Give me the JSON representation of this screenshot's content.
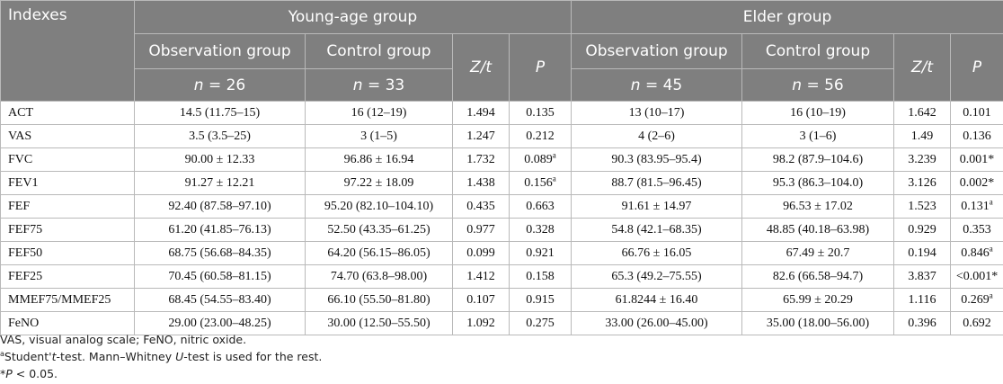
{
  "headers": {
    "indexes": "Indexes",
    "young_group": "Young-age group",
    "elder_group": "Elder group",
    "observation": "Observation group",
    "control": "Control group",
    "zt": "Z/t",
    "p": "P",
    "n_prefix": "n",
    "young_obs_n": " = 26",
    "young_ctrl_n": " = 33",
    "elder_obs_n": " = 45",
    "elder_ctrl_n": " = 56"
  },
  "rows": [
    {
      "label": "ACT",
      "y_obs": "14.5 (11.75–15)",
      "y_ctrl": "16 (12–19)",
      "y_zt": "1.494",
      "y_p": "0.135",
      "y_p_sup": "",
      "e_obs": "13 (10–17)",
      "e_ctrl": "16 (10–19)",
      "e_zt": "1.642",
      "e_p": "0.101",
      "e_p_sup": ""
    },
    {
      "label": "VAS",
      "y_obs": "3.5 (3.5–25)",
      "y_ctrl": "3 (1–5)",
      "y_zt": "1.247",
      "y_p": "0.212",
      "y_p_sup": "",
      "e_obs": "4 (2–6)",
      "e_ctrl": "3 (1–6)",
      "e_zt": "1.49",
      "e_p": "0.136",
      "e_p_sup": ""
    },
    {
      "label": "FVC",
      "y_obs": "90.00 ± 12.33",
      "y_ctrl": "96.86 ± 16.94",
      "y_zt": "1.732",
      "y_p": "0.089",
      "y_p_sup": "a",
      "e_obs": "90.3 (83.95–95.4)",
      "e_ctrl": "98.2 (87.9–104.6)",
      "e_zt": "3.239",
      "e_p": "0.001*",
      "e_p_sup": ""
    },
    {
      "label": "FEV1",
      "y_obs": "91.27 ± 12.21",
      "y_ctrl": "97.22 ± 18.09",
      "y_zt": "1.438",
      "y_p": "0.156",
      "y_p_sup": "a",
      "e_obs": "88.7 (81.5–96.45)",
      "e_ctrl": "95.3 (86.3–104.0)",
      "e_zt": "3.126",
      "e_p": "0.002*",
      "e_p_sup": ""
    },
    {
      "label": "FEF",
      "y_obs": "92.40 (87.58–97.10)",
      "y_ctrl": "95.20 (82.10–104.10)",
      "y_zt": "0.435",
      "y_p": "0.663",
      "y_p_sup": "",
      "e_obs": "91.61 ± 14.97",
      "e_ctrl": "96.53 ± 17.02",
      "e_zt": "1.523",
      "e_p": "0.131",
      "e_p_sup": "a"
    },
    {
      "label": "FEF75",
      "y_obs": "61.20 (41.85–76.13)",
      "y_ctrl": "52.50 (43.35–61.25)",
      "y_zt": "0.977",
      "y_p": "0.328",
      "y_p_sup": "",
      "e_obs": "54.8 (42.1–68.35)",
      "e_ctrl": "48.85 (40.18–63.98)",
      "e_zt": "0.929",
      "e_p": "0.353",
      "e_p_sup": ""
    },
    {
      "label": "FEF50",
      "y_obs": "68.75 (56.68–84.35)",
      "y_ctrl": "64.20 (56.15–86.05)",
      "y_zt": "0.099",
      "y_p": "0.921",
      "y_p_sup": "",
      "e_obs": "66.76 ± 16.05",
      "e_ctrl": "67.49 ± 20.7",
      "e_zt": "0.194",
      "e_p": "0.846",
      "e_p_sup": "a"
    },
    {
      "label": "FEF25",
      "y_obs": "70.45 (60.58–81.15)",
      "y_ctrl": "74.70 (63.8–98.00)",
      "y_zt": "1.412",
      "y_p": "0.158",
      "y_p_sup": "",
      "e_obs": "65.3 (49.2–75.55)",
      "e_ctrl": "82.6 (66.58–94.7)",
      "e_zt": "3.837",
      "e_p": "<0.001*",
      "e_p_sup": ""
    },
    {
      "label": "MMEF75/MMEF25",
      "y_obs": "68.45 (54.55–83.40)",
      "y_ctrl": "66.10 (55.50–81.80)",
      "y_zt": "0.107",
      "y_p": "0.915",
      "y_p_sup": "",
      "e_obs": "61.8244 ± 16.40",
      "e_ctrl": "65.99 ± 20.29",
      "e_zt": "1.116",
      "e_p": "0.269",
      "e_p_sup": "a"
    },
    {
      "label": "FeNO",
      "y_obs": "29.00 (23.00–48.25)",
      "y_ctrl": "30.00 (12.50–55.50)",
      "y_zt": "1.092",
      "y_p": "0.275",
      "y_p_sup": "",
      "e_obs": "33.00 (26.00–45.00)",
      "e_ctrl": "35.00 (18.00–56.00)",
      "e_zt": "0.396",
      "e_p": "0.692",
      "e_p_sup": ""
    }
  ],
  "footnotes": {
    "abbrev": "VAS, visual analog scale; FeNO, nitric oxide.",
    "a_sup": "a",
    "a_part1": "Student'",
    "a_t": "t",
    "a_part2": "-test. Mann–Whitney ",
    "a_u": "U",
    "a_part3": "-test is used for the rest.",
    "star": "*",
    "star_p": "P",
    "star_rest": " < 0.05."
  }
}
